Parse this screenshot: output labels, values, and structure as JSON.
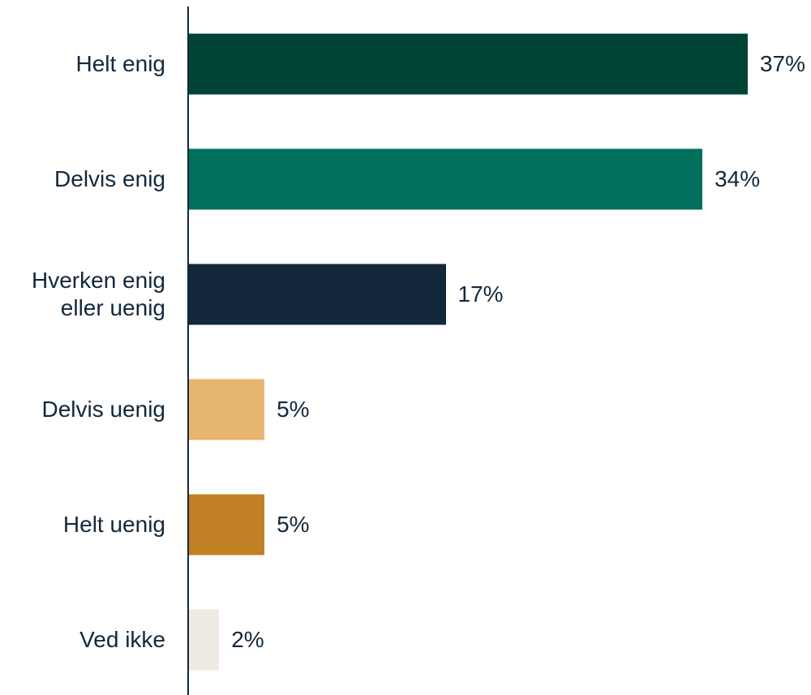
{
  "chart_data": {
    "type": "bar",
    "orientation": "horizontal",
    "categories": [
      "Helt enig",
      "Delvis enig",
      "Hverken enig eller uenig",
      "Delvis uenig",
      "Helt uenig",
      "Ved ikke"
    ],
    "values": [
      37,
      34,
      17,
      5,
      5,
      2
    ],
    "value_labels": [
      "37%",
      "34%",
      "17%",
      "5%",
      "5%",
      "2%"
    ],
    "colors": [
      "#004436",
      "#006f5b",
      "#12273a",
      "#e6b570",
      "#c28024",
      "#efebe4"
    ]
  }
}
